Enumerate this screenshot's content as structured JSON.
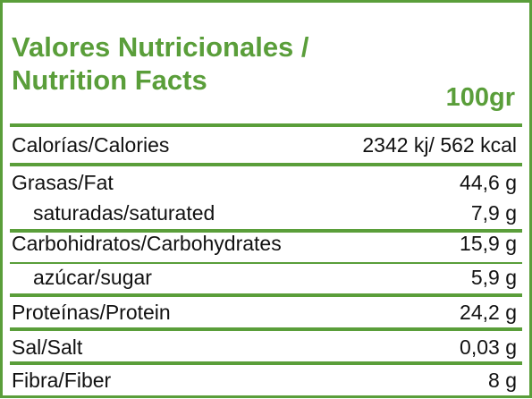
{
  "header": {
    "title": [
      "Valores Nutricionales /",
      "Nutrition Facts"
    ],
    "serving": "100gr"
  },
  "table": {
    "rows": [
      [
        "Calorías/Calories",
        "2342 kj/ 562 kcal"
      ],
      [
        "Grasas/Fat",
        "44,6 g"
      ],
      [
        "saturadas/saturated",
        "7,9 g"
      ],
      [
        "Carbohidratos/Carbohydrates",
        "15,9 g"
      ],
      [
        "azúcar/sugar",
        "5,9 g"
      ],
      [
        "Proteínas/Protein",
        "24,2 g"
      ],
      [
        "Sal/Salt",
        "0,03 g"
      ],
      [
        "Fibra/Fiber",
        "8 g"
      ]
    ]
  }
}
